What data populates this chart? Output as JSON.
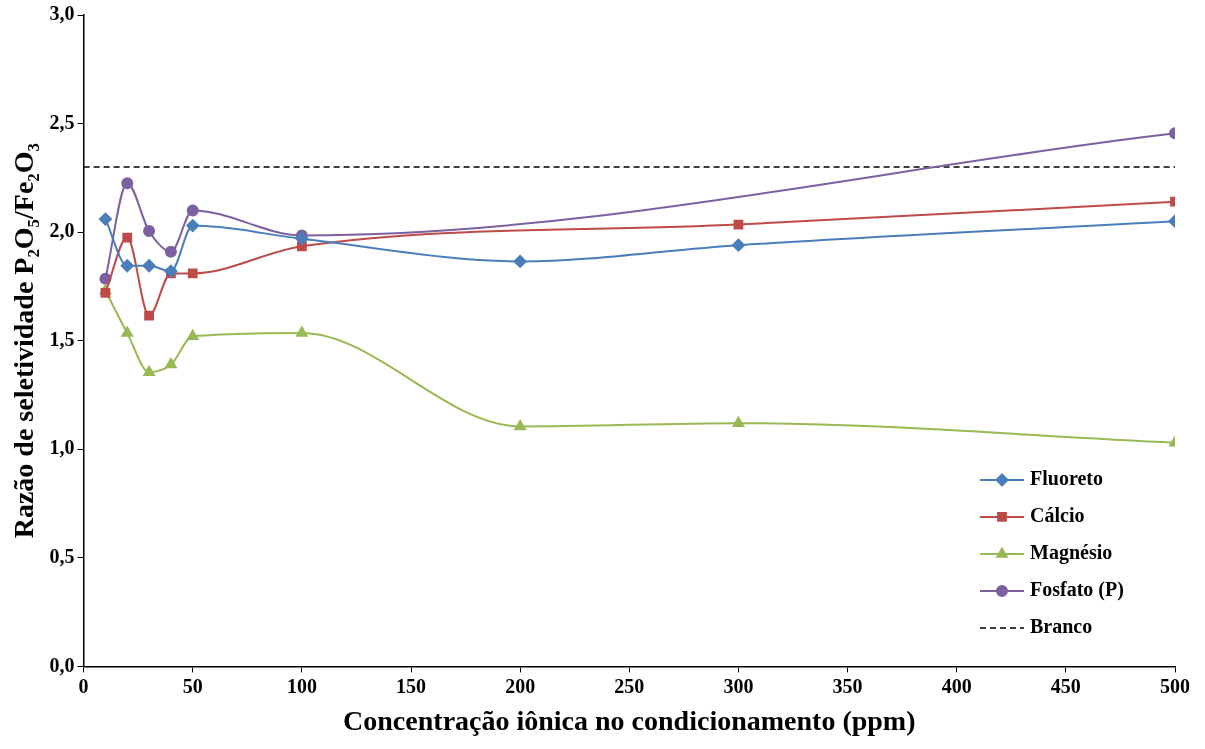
{
  "chart_data": {
    "type": "line",
    "xlabel": "Concentração iônica no condicionamento (ppm)",
    "ylabel": "Razão de seletividade P₂O₅/Fe₂O₃",
    "xlim": [
      0,
      500
    ],
    "xticks": [
      0,
      50,
      100,
      150,
      200,
      250,
      300,
      350,
      400,
      450,
      500
    ],
    "ylim": [
      0,
      3
    ],
    "yticks": [
      {
        "value": 0,
        "label": "0,0"
      },
      {
        "value": 0.5,
        "label": "0,5"
      },
      {
        "value": 1,
        "label": "1,0"
      },
      {
        "value": 1.5,
        "label": "1,5"
      },
      {
        "value": 2,
        "label": "2,0"
      },
      {
        "value": 2.5,
        "label": "2,5"
      },
      {
        "value": 3,
        "label": "3,0"
      }
    ],
    "grid": false,
    "legend": "bottom right",
    "series": [
      {
        "name": "Fluoreto",
        "color": "#4a7ebb",
        "marker": "diamond",
        "x": [
          10,
          20,
          30,
          40,
          50,
          100,
          200,
          300,
          500
        ],
        "values": [
          2.06,
          1.845,
          1.845,
          1.82,
          2.03,
          1.97,
          1.865,
          1.94,
          2.05
        ]
      },
      {
        "name": "Cálcio",
        "color": "#be4b48",
        "marker": "square",
        "x": [
          10,
          20,
          30,
          40,
          50,
          100,
          300,
          500
        ],
        "values": [
          1.72,
          1.975,
          1.615,
          1.81,
          1.81,
          1.935,
          2.035,
          2.14
        ]
      },
      {
        "name": "Magnésio",
        "color": "#98b954",
        "marker": "triangle",
        "x": [
          10,
          20,
          30,
          40,
          50,
          100,
          200,
          300,
          500
        ],
        "values": [
          1.73,
          1.535,
          1.355,
          1.39,
          1.52,
          1.535,
          1.105,
          1.12,
          1.03
        ]
      },
      {
        "name": "Fosfato (P)",
        "color": "#7d60a0",
        "marker": "circle",
        "x": [
          10,
          20,
          30,
          40,
          50,
          100,
          500
        ],
        "values": [
          1.785,
          2.225,
          2.005,
          1.91,
          2.1,
          1.985,
          2.455
        ]
      },
      {
        "name": "Branco",
        "color": "#000000",
        "marker": "none",
        "line_style": "dashed",
        "x": [
          0,
          500
        ],
        "values": [
          2.3,
          2.3
        ]
      }
    ]
  }
}
